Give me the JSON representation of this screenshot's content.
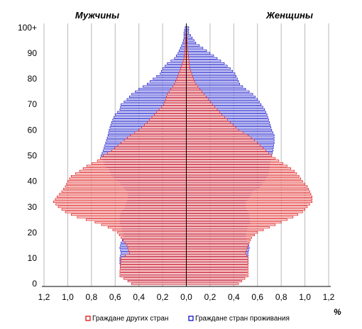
{
  "chart_data": {
    "type": "bar",
    "orientation": "horizontal-pyramid",
    "left_title": "Мужчины",
    "right_title": "Женщины",
    "unit_label": "%",
    "x_ticks": [
      "1,2",
      "1,0",
      "0,8",
      "0,6",
      "0,4",
      "0,2",
      "0,0",
      "0,2",
      "0,4",
      "0,6",
      "0,8",
      "1,0",
      "1,2"
    ],
    "y_ticks": [
      "0",
      "10",
      "20",
      "30",
      "40",
      "50",
      "60",
      "70",
      "80",
      "90",
      "100+"
    ],
    "xlim": [
      -1.2,
      1.2
    ],
    "age_range": [
      0,
      100
    ],
    "age_step": 1,
    "x_grid": true,
    "legend_position": "bottom",
    "series": [
      {
        "name": "Граждане других стран",
        "color": "#dc0000",
        "men_anchors": [
          [
            0,
            0.46
          ],
          [
            3,
            0.56
          ],
          [
            5,
            0.56
          ],
          [
            10,
            0.55
          ],
          [
            12,
            0.48
          ],
          [
            15,
            0.5
          ],
          [
            18,
            0.55
          ],
          [
            20,
            0.58
          ],
          [
            22,
            0.66
          ],
          [
            24,
            0.77
          ],
          [
            26,
            0.92
          ],
          [
            28,
            1.02
          ],
          [
            30,
            1.08
          ],
          [
            32,
            1.12
          ],
          [
            34,
            1.09
          ],
          [
            36,
            1.05
          ],
          [
            38,
            1.02
          ],
          [
            40,
            1.0
          ],
          [
            42,
            0.97
          ],
          [
            44,
            0.9
          ],
          [
            46,
            0.84
          ],
          [
            48,
            0.75
          ],
          [
            50,
            0.7
          ],
          [
            52,
            0.63
          ],
          [
            55,
            0.55
          ],
          [
            58,
            0.47
          ],
          [
            60,
            0.4
          ],
          [
            63,
            0.33
          ],
          [
            66,
            0.27
          ],
          [
            70,
            0.19
          ],
          [
            74,
            0.16
          ],
          [
            78,
            0.1
          ],
          [
            80,
            0.08
          ],
          [
            85,
            0.04
          ],
          [
            88,
            0.02
          ],
          [
            92,
            0.01
          ],
          [
            100,
            0.0
          ]
        ],
        "women_anchors": [
          [
            0,
            0.44
          ],
          [
            3,
            0.52
          ],
          [
            5,
            0.52
          ],
          [
            10,
            0.52
          ],
          [
            12,
            0.5
          ],
          [
            15,
            0.52
          ],
          [
            18,
            0.55
          ],
          [
            20,
            0.6
          ],
          [
            22,
            0.7
          ],
          [
            24,
            0.8
          ],
          [
            26,
            0.9
          ],
          [
            28,
            0.98
          ],
          [
            30,
            1.02
          ],
          [
            32,
            1.06
          ],
          [
            34,
            1.06
          ],
          [
            36,
            1.04
          ],
          [
            38,
            1.02
          ],
          [
            40,
            0.98
          ],
          [
            42,
            0.95
          ],
          [
            44,
            0.91
          ],
          [
            46,
            0.85
          ],
          [
            48,
            0.78
          ],
          [
            50,
            0.72
          ],
          [
            52,
            0.67
          ],
          [
            55,
            0.6
          ],
          [
            58,
            0.52
          ],
          [
            60,
            0.44
          ],
          [
            63,
            0.37
          ],
          [
            66,
            0.3
          ],
          [
            70,
            0.22
          ],
          [
            74,
            0.15
          ],
          [
            78,
            0.08
          ],
          [
            80,
            0.06
          ],
          [
            84,
            0.03
          ],
          [
            88,
            0.02
          ],
          [
            92,
            0.01
          ],
          [
            100,
            0.0
          ]
        ]
      },
      {
        "name": "Граждане стран проживания",
        "color": "#0000c8",
        "men_anchors": [
          [
            0,
            0.46
          ],
          [
            3,
            0.55
          ],
          [
            5,
            0.55
          ],
          [
            8,
            0.56
          ],
          [
            10,
            0.56
          ],
          [
            12,
            0.55
          ],
          [
            14,
            0.56
          ],
          [
            16,
            0.55
          ],
          [
            18,
            0.53
          ],
          [
            20,
            0.53
          ],
          [
            22,
            0.55
          ],
          [
            24,
            0.56
          ],
          [
            26,
            0.56
          ],
          [
            28,
            0.55
          ],
          [
            30,
            0.52
          ],
          [
            32,
            0.5
          ],
          [
            34,
            0.49
          ],
          [
            36,
            0.5
          ],
          [
            38,
            0.53
          ],
          [
            40,
            0.58
          ],
          [
            42,
            0.62
          ],
          [
            44,
            0.65
          ],
          [
            46,
            0.68
          ],
          [
            48,
            0.7
          ],
          [
            50,
            0.72
          ],
          [
            52,
            0.7
          ],
          [
            55,
            0.68
          ],
          [
            58,
            0.66
          ],
          [
            60,
            0.65
          ],
          [
            63,
            0.63
          ],
          [
            66,
            0.6
          ],
          [
            68,
            0.56
          ],
          [
            70,
            0.55
          ],
          [
            72,
            0.5
          ],
          [
            74,
            0.46
          ],
          [
            76,
            0.4
          ],
          [
            78,
            0.33
          ],
          [
            80,
            0.28
          ],
          [
            82,
            0.22
          ],
          [
            84,
            0.2
          ],
          [
            86,
            0.16
          ],
          [
            88,
            0.1
          ],
          [
            90,
            0.07
          ],
          [
            92,
            0.05
          ],
          [
            94,
            0.03
          ],
          [
            96,
            0.02
          ],
          [
            98,
            0.02
          ],
          [
            100,
            0.01
          ]
        ],
        "women_anchors": [
          [
            0,
            0.43
          ],
          [
            3,
            0.5
          ],
          [
            5,
            0.51
          ],
          [
            8,
            0.52
          ],
          [
            10,
            0.52
          ],
          [
            12,
            0.52
          ],
          [
            14,
            0.53
          ],
          [
            16,
            0.52
          ],
          [
            18,
            0.5
          ],
          [
            20,
            0.5
          ],
          [
            22,
            0.52
          ],
          [
            24,
            0.54
          ],
          [
            26,
            0.53
          ],
          [
            28,
            0.52
          ],
          [
            30,
            0.5
          ],
          [
            32,
            0.5
          ],
          [
            34,
            0.53
          ],
          [
            36,
            0.57
          ],
          [
            38,
            0.62
          ],
          [
            40,
            0.66
          ],
          [
            42,
            0.68
          ],
          [
            44,
            0.7
          ],
          [
            46,
            0.7
          ],
          [
            48,
            0.71
          ],
          [
            50,
            0.72
          ],
          [
            52,
            0.73
          ],
          [
            55,
            0.74
          ],
          [
            58,
            0.74
          ],
          [
            60,
            0.72
          ],
          [
            63,
            0.7
          ],
          [
            66,
            0.68
          ],
          [
            68,
            0.66
          ],
          [
            70,
            0.63
          ],
          [
            72,
            0.6
          ],
          [
            74,
            0.56
          ],
          [
            76,
            0.5
          ],
          [
            78,
            0.45
          ],
          [
            80,
            0.43
          ],
          [
            82,
            0.41
          ],
          [
            84,
            0.37
          ],
          [
            86,
            0.32
          ],
          [
            88,
            0.26
          ],
          [
            90,
            0.2
          ],
          [
            92,
            0.14
          ],
          [
            94,
            0.08
          ],
          [
            96,
            0.05
          ],
          [
            98,
            0.02
          ],
          [
            100,
            0.02
          ]
        ]
      }
    ]
  }
}
